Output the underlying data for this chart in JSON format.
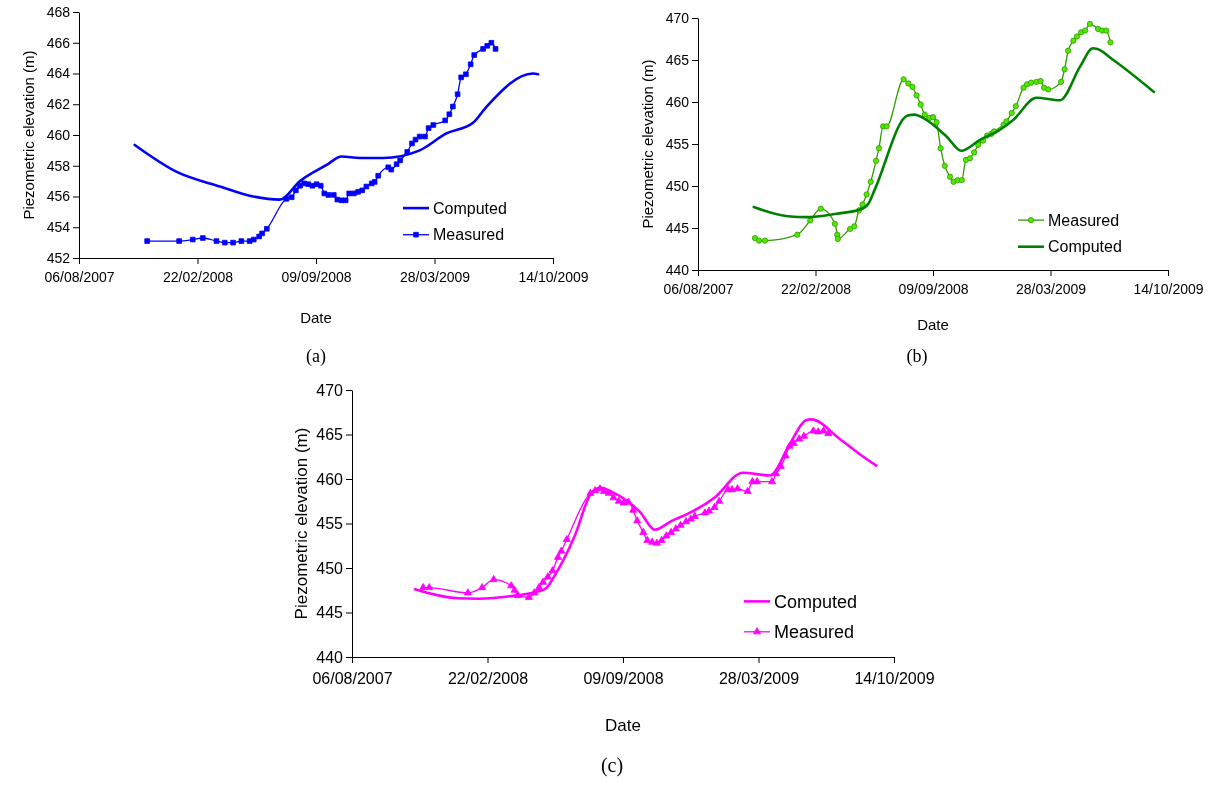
{
  "chart_data": [
    {
      "type": "line",
      "xlabel": "Date",
      "ylabel": "Piezometric elevation (m)",
      "annotations": [
        "(a)"
      ],
      "xlim": [
        "2007-08-06",
        "2009-10-14"
      ],
      "xticks": [
        {
          "value": "2007-08-06",
          "label": "06/08/2007"
        },
        {
          "value": "2008-02-22",
          "label": "22/02/2008"
        },
        {
          "value": "2008-09-09",
          "label": "09/09/2008"
        },
        {
          "value": "2009-03-28",
          "label": "28/03/2009"
        },
        {
          "value": "2009-10-14",
          "label": "14/10/2009"
        }
      ],
      "ylim": [
        452,
        468
      ],
      "yticks": [
        452,
        454,
        456,
        458,
        460,
        462,
        464,
        466,
        468
      ],
      "grid": false,
      "legend": "bottom right",
      "series": [
        {
          "name": "Computed",
          "color": "#0000ff",
          "marker": "none",
          "x": [
            "2007-11-08",
            "2008-01-18",
            "2008-03-31",
            "2008-05-26",
            "2008-07-10",
            "2008-08-13",
            "2008-09-27",
            "2008-10-22",
            "2008-11-22",
            "2008-12-31",
            "2009-03-03",
            "2009-04-17",
            "2009-06-01",
            "2009-06-24",
            "2009-09-10",
            "2009-09-19"
          ],
          "values": [
            459.35,
            457.6,
            456.65,
            456.0,
            455.8,
            457.0,
            458.05,
            458.6,
            458.5,
            458.5,
            459.0,
            460.1,
            460.8,
            461.85,
            464.0,
            463.95
          ]
        },
        {
          "name": "Measured",
          "color": "#0000ff",
          "marker": "square",
          "x": [
            "2007-11-29",
            "2008-01-22",
            "2008-02-14",
            "2008-03-02",
            "2008-03-25",
            "2008-04-08",
            "2008-04-22",
            "2008-05-06",
            "2008-05-20",
            "2008-05-27",
            "2008-06-05",
            "2008-06-10",
            "2008-06-18",
            "2008-07-21",
            "2008-07-30",
            "2008-08-06",
            "2008-08-13",
            "2008-08-20",
            "2008-08-27",
            "2008-09-03",
            "2008-09-10",
            "2008-09-17",
            "2008-09-23",
            "2008-09-30",
            "2008-10-09",
            "2008-10-15",
            "2008-10-22",
            "2008-10-29",
            "2008-11-04",
            "2008-11-12",
            "2008-11-19",
            "2008-11-26",
            "2008-12-03",
            "2008-12-12",
            "2008-12-17",
            "2008-12-23",
            "2009-01-09",
            "2009-01-14",
            "2009-01-23",
            "2009-01-29",
            "2009-02-10",
            "2009-02-18",
            "2009-02-24",
            "2009-03-03",
            "2009-03-12",
            "2009-03-18",
            "2009-03-26",
            "2009-04-15",
            "2009-04-22",
            "2009-04-28",
            "2009-05-06",
            "2009-05-12",
            "2009-05-20",
            "2009-05-28",
            "2009-06-03",
            "2009-06-18",
            "2009-06-25",
            "2009-07-02",
            "2009-07-09"
          ],
          "values": [
            453.1,
            453.1,
            453.2,
            453.3,
            453.1,
            453.0,
            453.0,
            453.1,
            453.1,
            453.2,
            453.4,
            453.6,
            453.9,
            455.85,
            455.95,
            456.4,
            456.7,
            456.85,
            456.8,
            456.7,
            456.8,
            456.7,
            456.2,
            456.1,
            456.1,
            455.8,
            455.75,
            455.75,
            456.2,
            456.2,
            456.3,
            456.4,
            456.65,
            456.85,
            456.95,
            457.35,
            457.9,
            457.75,
            458.1,
            458.35,
            458.9,
            459.45,
            459.7,
            459.9,
            459.9,
            460.45,
            460.65,
            460.95,
            461.35,
            461.85,
            462.65,
            463.75,
            463.95,
            464.6,
            465.2,
            465.6,
            465.8,
            466.0,
            465.6
          ]
        }
      ]
    },
    {
      "type": "line",
      "xlabel": "Date",
      "ylabel": "Piezometric elevation (m)",
      "annotations": [
        "(b)"
      ],
      "xlim": [
        "2007-08-06",
        "2009-10-14"
      ],
      "xticks": [
        {
          "value": "2007-08-06",
          "label": "06/08/2007"
        },
        {
          "value": "2008-02-22",
          "label": "22/02/2008"
        },
        {
          "value": "2008-09-09",
          "label": "09/09/2008"
        },
        {
          "value": "2009-03-28",
          "label": "28/03/2009"
        },
        {
          "value": "2009-10-14",
          "label": "14/10/2009"
        }
      ],
      "ylim": [
        440,
        470
      ],
      "yticks": [
        440,
        445,
        450,
        455,
        460,
        465,
        470
      ],
      "grid": false,
      "legend": "bottom right",
      "series": [
        {
          "name": "Measured",
          "color": "#339900",
          "marker": "circle",
          "x": [
            "2007-11-11",
            "2007-11-18",
            "2007-11-28",
            "2008-01-22",
            "2008-02-13",
            "2008-03-02",
            "2008-03-26",
            "2008-03-30",
            "2008-03-31",
            "2008-04-21",
            "2008-04-28",
            "2008-05-06",
            "2008-05-12",
            "2008-05-19",
            "2008-05-26",
            "2008-06-04",
            "2008-06-09",
            "2008-06-16",
            "2008-06-22",
            "2008-07-21",
            "2008-07-29",
            "2008-08-05",
            "2008-08-12",
            "2008-08-19",
            "2008-08-26",
            "2008-09-03",
            "2008-09-09",
            "2008-09-15",
            "2008-09-22",
            "2008-09-29",
            "2008-10-08",
            "2008-10-14",
            "2008-10-21",
            "2008-10-28",
            "2008-11-04",
            "2008-11-11",
            "2008-11-18",
            "2008-11-25",
            "2008-12-03",
            "2008-12-10",
            "2008-12-17",
            "2008-12-22",
            "2009-01-07",
            "2009-01-12",
            "2009-01-21",
            "2009-01-28",
            "2009-02-10",
            "2009-02-16",
            "2009-02-23",
            "2009-03-04",
            "2009-03-11",
            "2009-03-17",
            "2009-03-24",
            "2009-04-15",
            "2009-04-21",
            "2009-04-27",
            "2009-05-06",
            "2009-05-12",
            "2009-05-19",
            "2009-05-26",
            "2009-06-03",
            "2009-06-17",
            "2009-06-24",
            "2009-07-01",
            "2009-07-08"
          ],
          "values": [
            443.8,
            443.5,
            443.5,
            444.2,
            445.9,
            447.3,
            445.5,
            444.2,
            443.7,
            444.9,
            445.2,
            447.1,
            447.8,
            449.0,
            450.5,
            453.0,
            454.5,
            457.1,
            457.1,
            462.7,
            462.2,
            461.8,
            460.8,
            459.7,
            458.5,
            458.1,
            458.2,
            457.6,
            454.5,
            452.4,
            451.1,
            450.5,
            450.7,
            450.7,
            453.1,
            453.3,
            454.0,
            454.9,
            455.4,
            456.0,
            456.2,
            456.5,
            457.3,
            457.7,
            458.7,
            459.5,
            461.7,
            462.1,
            462.3,
            462.4,
            462.5,
            461.7,
            461.5,
            462.4,
            463.9,
            466.1,
            467.3,
            467.8,
            468.3,
            468.5,
            469.3,
            468.7,
            468.5,
            468.5,
            467.1
          ]
        },
        {
          "name": "Computed",
          "color": "#008000",
          "marker": "none",
          "x": [
            "2007-11-09",
            "2008-01-06",
            "2008-02-07",
            "2008-03-29",
            "2008-05-08",
            "2008-05-22",
            "2008-06-02",
            "2008-07-28",
            "2008-08-09",
            "2008-08-23",
            "2008-10-02",
            "2008-10-27",
            "2008-11-28",
            "2009-01-01",
            "2009-01-24",
            "2009-03-04",
            "2009-04-13",
            "2009-05-18",
            "2009-06-08",
            "2009-06-16",
            "2009-07-13",
            "2009-09-20"
          ],
          "values": [
            447.5,
            446.4,
            446.3,
            446.7,
            447.2,
            447.9,
            449.6,
            458.4,
            458.5,
            458.1,
            455.9,
            454.2,
            455.5,
            456.7,
            457.9,
            460.5,
            460.2,
            464.3,
            466.4,
            466.3,
            465.0,
            461.2
          ]
        }
      ]
    },
    {
      "type": "line",
      "xlabel": "Date",
      "ylabel": "Piezometric elevation (m)",
      "annotations": [
        "(c)"
      ],
      "xlim": [
        "2007-08-06",
        "2009-10-14"
      ],
      "xticks": [
        {
          "value": "2007-08-06",
          "label": "06/08/2007"
        },
        {
          "value": "2008-02-22",
          "label": "22/02/2008"
        },
        {
          "value": "2008-09-09",
          "label": "09/09/2008"
        },
        {
          "value": "2009-03-28",
          "label": "28/03/2009"
        },
        {
          "value": "2009-10-14",
          "label": "14/10/2009"
        }
      ],
      "ylim": [
        440,
        470
      ],
      "yticks": [
        440,
        445,
        450,
        455,
        460,
        465,
        470
      ],
      "grid": false,
      "legend": "bottom right",
      "series": [
        {
          "name": "Computed",
          "color": "#ff00ff",
          "marker": "none",
          "x": [
            "2007-11-07",
            "2008-01-08",
            "2008-02-09",
            "2008-04-07",
            "2008-05-06",
            "2008-05-19",
            "2008-05-30",
            "2008-06-30",
            "2008-07-24",
            "2008-08-07",
            "2008-08-25",
            "2008-10-04",
            "2008-10-26",
            "2008-11-20",
            "2008-12-14",
            "2009-01-22",
            "2009-03-05",
            "2009-04-14",
            "2009-05-13",
            "2009-06-06",
            "2009-06-14",
            "2009-07-26",
            "2009-08-26",
            "2009-09-18"
          ],
          "values": [
            447.6,
            446.6,
            446.55,
            446.95,
            447.35,
            447.75,
            449.0,
            453.65,
            458.4,
            459.0,
            458.5,
            456.3,
            454.3,
            455.3,
            456.1,
            457.9,
            460.7,
            460.4,
            463.9,
            466.6,
            466.7,
            464.5,
            462.7,
            461.5
          ]
        },
        {
          "name": "Measured",
          "color": "#ff00ff",
          "marker": "triangle",
          "x": [
            "2007-11-19",
            "2007-11-28",
            "2008-01-24",
            "2008-02-14",
            "2008-03-02",
            "2008-03-28",
            "2008-04-02",
            "2008-04-07",
            "2008-04-23",
            "2008-05-01",
            "2008-05-08",
            "2008-05-14",
            "2008-05-21",
            "2008-05-28",
            "2008-06-05",
            "2008-06-10",
            "2008-06-18",
            "2008-07-23",
            "2008-07-30",
            "2008-08-06",
            "2008-08-12",
            "2008-08-19",
            "2008-08-26",
            "2008-09-03",
            "2008-09-10",
            "2008-09-17",
            "2008-09-24",
            "2008-09-30",
            "2008-10-09",
            "2008-10-15",
            "2008-10-22",
            "2008-10-29",
            "2008-11-05",
            "2008-11-12",
            "2008-11-19",
            "2008-11-26",
            "2008-12-03",
            "2008-12-11",
            "2008-12-18",
            "2008-12-24",
            "2009-01-08",
            "2009-01-14",
            "2009-01-22",
            "2009-01-29",
            "2009-02-11",
            "2009-02-17",
            "2009-02-25",
            "2009-03-12",
            "2009-03-19",
            "2009-03-26",
            "2009-04-17",
            "2009-04-23",
            "2009-04-30",
            "2009-05-07",
            "2009-05-13",
            "2009-05-19",
            "2009-05-27",
            "2009-06-03",
            "2009-06-17",
            "2009-06-24",
            "2009-07-02",
            "2009-07-09"
          ],
          "values": [
            447.8,
            447.8,
            447.2,
            447.8,
            448.7,
            448.0,
            447.5,
            446.9,
            446.7,
            447.2,
            447.8,
            448.4,
            449.0,
            449.7,
            451.2,
            451.9,
            453.2,
            458.4,
            458.7,
            458.9,
            458.6,
            458.4,
            457.9,
            457.5,
            457.3,
            457.4,
            456.5,
            455.3,
            454.0,
            453.1,
            452.9,
            452.8,
            453.1,
            453.6,
            454.0,
            454.4,
            454.8,
            455.2,
            455.5,
            455.8,
            456.2,
            456.4,
            456.8,
            457.5,
            458.8,
            458.8,
            458.9,
            458.6,
            459.7,
            459.7,
            459.7,
            460.6,
            461.4,
            462.6,
            463.7,
            464.0,
            464.5,
            464.8,
            465.4,
            465.3,
            465.4,
            465.1
          ]
        }
      ]
    }
  ]
}
